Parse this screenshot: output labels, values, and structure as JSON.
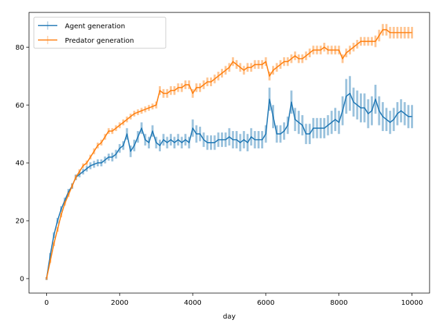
{
  "chart_data": {
    "type": "line",
    "title": "",
    "xlabel": "day",
    "ylabel": "",
    "xlim": [
      -480,
      10480
    ],
    "ylim": [
      -5,
      92
    ],
    "xticks": [
      0,
      2000,
      4000,
      6000,
      8000,
      10000
    ],
    "xtick_labels": [
      "0",
      "2000",
      "4000",
      "6000",
      "8000",
      "10000"
    ],
    "yticks": [
      0,
      20,
      40,
      60,
      80
    ],
    "ytick_labels": [
      "0",
      "20",
      "40",
      "60",
      "80"
    ],
    "grid": false,
    "legend_position": "upper-left",
    "series": [
      {
        "name": "Agent generation",
        "color": "#1f77b4",
        "error_bars": true,
        "x": [
          0,
          100,
          200,
          300,
          400,
          500,
          600,
          700,
          800,
          900,
          1000,
          1100,
          1200,
          1300,
          1400,
          1500,
          1600,
          1700,
          1800,
          1900,
          2000,
          2100,
          2200,
          2300,
          2400,
          2500,
          2600,
          2700,
          2800,
          2900,
          3000,
          3100,
          3200,
          3300,
          3400,
          3500,
          3600,
          3700,
          3800,
          3900,
          4000,
          4100,
          4200,
          4300,
          4400,
          4500,
          4600,
          4700,
          4800,
          4900,
          5000,
          5100,
          5200,
          5300,
          5400,
          5500,
          5600,
          5700,
          5800,
          5900,
          6000,
          6100,
          6200,
          6300,
          6400,
          6500,
          6600,
          6700,
          6800,
          6900,
          7000,
          7100,
          7200,
          7300,
          7400,
          7500,
          7600,
          7700,
          7800,
          7900,
          8000,
          8100,
          8200,
          8300,
          8400,
          8500,
          8600,
          8700,
          8800,
          8900,
          9000,
          9100,
          9200,
          9300,
          9400,
          9500,
          9600,
          9700,
          9800,
          9900,
          10000
        ],
        "y": [
          0,
          8,
          15,
          20,
          24,
          27,
          30,
          32,
          35,
          36,
          37,
          38,
          39,
          39.5,
          40,
          40,
          41,
          42,
          42,
          43,
          45,
          46,
          50,
          44,
          46,
          49,
          52,
          48,
          47,
          51,
          47,
          46,
          48,
          47,
          48,
          47,
          48,
          47,
          48,
          47,
          52,
          50,
          50,
          48,
          47,
          47,
          47,
          48,
          48,
          48,
          49,
          48,
          48,
          47,
          48,
          47,
          49,
          48,
          48,
          48,
          50,
          62,
          56,
          50,
          50,
          51,
          53,
          61,
          55,
          54,
          53,
          50,
          50,
          52,
          52,
          52,
          52,
          53,
          54,
          55,
          54,
          58,
          63,
          64,
          61,
          60,
          59,
          59,
          57,
          58,
          62,
          58,
          56,
          55,
          54,
          55,
          57,
          58,
          57,
          56,
          56
        ],
        "err": [
          0.5,
          0.8,
          1,
          1,
          1,
          1,
          1,
          1,
          1,
          1,
          1,
          1,
          1.2,
          1.2,
          1.2,
          1.2,
          1.2,
          1.2,
          1.5,
          1.5,
          1.5,
          1.5,
          2,
          2,
          2,
          2,
          2,
          2,
          2,
          2,
          2,
          2,
          2,
          2,
          2,
          2,
          2,
          2,
          2,
          2,
          3,
          3,
          2.5,
          2.5,
          2.5,
          2.5,
          2.5,
          2.5,
          2.5,
          2.5,
          3,
          3,
          3,
          3,
          3,
          3,
          3,
          3,
          3,
          3,
          3,
          4,
          4,
          3,
          3,
          3,
          3,
          4,
          4,
          4,
          3.5,
          3.5,
          3.5,
          3.5,
          3.5,
          3.5,
          3.5,
          3.5,
          4,
          4,
          4,
          5,
          6,
          6,
          5,
          5,
          5,
          5,
          5,
          5,
          5,
          5,
          5,
          4,
          4,
          4,
          4,
          4,
          4,
          4,
          4
        ]
      },
      {
        "name": "Predator generation",
        "color": "#ff7f0e",
        "error_bars": true,
        "x": [
          0,
          100,
          200,
          300,
          400,
          500,
          600,
          700,
          800,
          900,
          1000,
          1100,
          1200,
          1300,
          1400,
          1500,
          1600,
          1700,
          1800,
          1900,
          2000,
          2100,
          2200,
          2300,
          2400,
          2500,
          2600,
          2700,
          2800,
          2900,
          3000,
          3100,
          3200,
          3300,
          3400,
          3500,
          3600,
          3700,
          3800,
          3900,
          4000,
          4100,
          4200,
          4300,
          4400,
          4500,
          4600,
          4700,
          4800,
          4900,
          5000,
          5100,
          5200,
          5300,
          5400,
          5500,
          5600,
          5700,
          5800,
          5900,
          6000,
          6100,
          6200,
          6300,
          6400,
          6500,
          6600,
          6700,
          6800,
          6900,
          7000,
          7100,
          7200,
          7300,
          7400,
          7500,
          7600,
          7700,
          7800,
          7900,
          8000,
          8100,
          8200,
          8300,
          8400,
          8500,
          8600,
          8700,
          8800,
          8900,
          9000,
          9100,
          9200,
          9300,
          9400,
          9500,
          9600,
          9700,
          9800,
          9900,
          10000
        ],
        "y": [
          0,
          6,
          12,
          17,
          22,
          26,
          29,
          32,
          35,
          37,
          39,
          40,
          42,
          44,
          46,
          47,
          49,
          51,
          51,
          52,
          53,
          54,
          55,
          56,
          57,
          57.5,
          58,
          58.5,
          59,
          59.5,
          60,
          65,
          64,
          64,
          65,
          65,
          66,
          66,
          67,
          67,
          64,
          66,
          66,
          67,
          68,
          68,
          69,
          70,
          71,
          72,
          73,
          75,
          74,
          73,
          72,
          73,
          73,
          74,
          74,
          74,
          75,
          70,
          72,
          73,
          74,
          75,
          75,
          76,
          77,
          76,
          76,
          77,
          78,
          79,
          79,
          79,
          80,
          79,
          79,
          79,
          79,
          76,
          78,
          79,
          80,
          81,
          82,
          82,
          82,
          82,
          82,
          84,
          86,
          86,
          85,
          85,
          85,
          85,
          85,
          85,
          85
        ],
        "err": [
          0.5,
          0.6,
          0.8,
          0.8,
          0.8,
          0.8,
          0.8,
          0.8,
          0.8,
          0.8,
          0.8,
          0.8,
          0.8,
          1,
          1,
          1,
          1,
          1,
          1,
          1,
          1,
          1,
          1,
          1,
          1,
          1,
          1,
          1,
          1,
          1,
          1.2,
          1.5,
          1.5,
          1.5,
          1.5,
          1.5,
          1.5,
          1.5,
          1.5,
          1.5,
          1.5,
          1.5,
          1.5,
          1.5,
          1.5,
          1.5,
          1.5,
          1.5,
          1.5,
          1.5,
          1.5,
          1.5,
          1.5,
          1.5,
          1.5,
          1.5,
          1.5,
          1.5,
          1.5,
          1.5,
          1.5,
          1.5,
          1.5,
          1.5,
          1.5,
          1.5,
          1.5,
          1.5,
          1.5,
          1.5,
          1.5,
          1.5,
          1.5,
          1.5,
          1.5,
          1.5,
          1.5,
          1.5,
          1.5,
          1.5,
          1.5,
          1.5,
          1.5,
          1.5,
          1.5,
          1.5,
          1.5,
          1.5,
          1.5,
          1.5,
          2,
          2,
          2,
          2,
          2,
          2,
          2,
          2,
          2,
          2,
          2
        ]
      }
    ]
  }
}
